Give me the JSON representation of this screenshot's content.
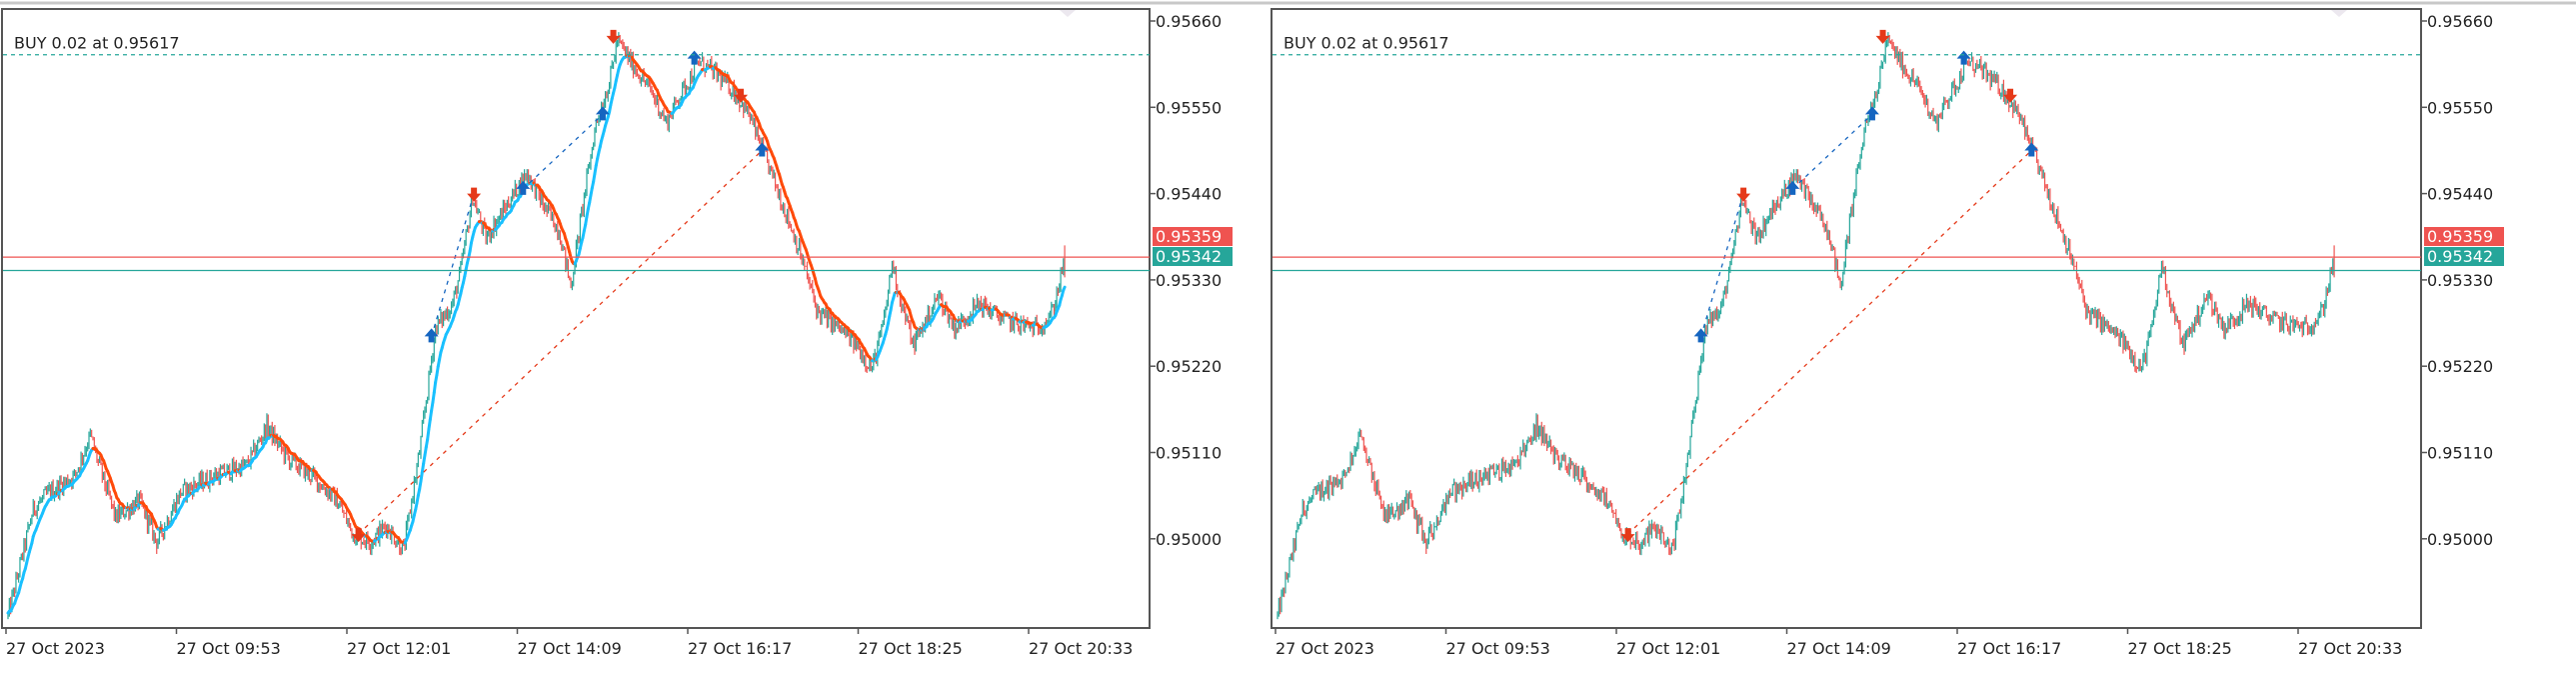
{
  "colors": {
    "up": "#26a69a",
    "down": "#ef5350",
    "ma_up": "#19c0ff",
    "ma_down": "#ff4a0a",
    "bid": "#ef5350",
    "ask": "#26a69a",
    "buy_marker": "#1565c0",
    "sell_marker": "#e53919"
  },
  "symbol_price_axis": [
    "0.95660",
    "0.95550",
    "0.95440",
    "0.95330",
    "0.95220",
    "0.95110",
    "0.95000"
  ],
  "time_axis": [
    "27 Oct 2023",
    "27 Oct 09:53",
    "27 Oct 12:01",
    "27 Oct 14:09",
    "27 Oct 16:17",
    "27 Oct 18:25",
    "27 Oct 20:33"
  ],
  "position_label": "BUY 0.02 at 0.95617",
  "position_price": 0.95617,
  "bid_price": "0.95359",
  "ask_price": "0.95342",
  "charts": [
    {
      "name": "left-chart",
      "moving_average": true
    },
    {
      "name": "right-chart",
      "moving_average": false
    }
  ],
  "price_path": [
    [
      0,
      0.94902
    ],
    [
      6,
      0.94944
    ],
    [
      19,
      0.95038
    ],
    [
      31,
      0.95059
    ],
    [
      50,
      0.9508
    ],
    [
      62,
      0.95132
    ],
    [
      71,
      0.9508
    ],
    [
      81,
      0.95027
    ],
    [
      99,
      0.95048
    ],
    [
      112,
      0.94996
    ],
    [
      130,
      0.95059
    ],
    [
      155,
      0.9508
    ],
    [
      180,
      0.95094
    ],
    [
      195,
      0.95143
    ],
    [
      211,
      0.95101
    ],
    [
      229,
      0.9508
    ],
    [
      248,
      0.95048
    ],
    [
      260,
      0.95006
    ],
    [
      273,
      0.94996
    ],
    [
      285,
      0.95017
    ],
    [
      298,
      0.94985
    ],
    [
      310,
      0.95111
    ],
    [
      322,
      0.95268
    ],
    [
      335,
      0.953
    ],
    [
      341,
      0.95342
    ],
    [
      350,
      0.95436
    ],
    [
      360,
      0.95383
    ],
    [
      372,
      0.95415
    ],
    [
      391,
      0.95467
    ],
    [
      403,
      0.95425
    ],
    [
      415,
      0.95394
    ],
    [
      424,
      0.95321
    ],
    [
      434,
      0.95436
    ],
    [
      443,
      0.9553
    ],
    [
      453,
      0.95582
    ],
    [
      459,
      0.95635
    ],
    [
      471,
      0.95603
    ],
    [
      484,
      0.95572
    ],
    [
      496,
      0.9553
    ],
    [
      505,
      0.95562
    ],
    [
      521,
      0.95608
    ],
    [
      533,
      0.95593
    ],
    [
      546,
      0.95572
    ],
    [
      558,
      0.95541
    ],
    [
      577,
      0.95457
    ],
    [
      595,
      0.95373
    ],
    [
      610,
      0.95289
    ],
    [
      626,
      0.95268
    ],
    [
      639,
      0.95247
    ],
    [
      651,
      0.95216
    ],
    [
      660,
      0.95279
    ],
    [
      666,
      0.95352
    ],
    [
      673,
      0.953
    ],
    [
      682,
      0.95247
    ],
    [
      701,
      0.9531
    ],
    [
      713,
      0.95268
    ],
    [
      732,
      0.953
    ],
    [
      750,
      0.95279
    ],
    [
      775,
      0.95268
    ],
    [
      787,
      0.95289
    ],
    [
      794,
      0.95342
    ],
    [
      796,
      0.95345
    ]
  ],
  "trades": [
    {
      "t": 264,
      "price": 0.95006,
      "type": "sell"
    },
    {
      "t": 319,
      "price": 0.95258,
      "type": "buy"
    },
    {
      "t": 351,
      "price": 0.9544,
      "type": "sell"
    },
    {
      "t": 388,
      "price": 0.95446,
      "type": "buy"
    },
    {
      "t": 448,
      "price": 0.95541,
      "type": "buy"
    },
    {
      "t": 456,
      "price": 0.95641,
      "type": "sell"
    },
    {
      "t": 517,
      "price": 0.95612,
      "type": "buy"
    },
    {
      "t": 552,
      "price": 0.95566,
      "type": "sell"
    },
    {
      "t": 568,
      "price": 0.95495,
      "type": "buy"
    }
  ],
  "trade_links": [
    {
      "from": 1,
      "to": 2,
      "type": "buy"
    },
    {
      "from": 3,
      "to": 4,
      "type": "buy"
    },
    {
      "from": 0,
      "to": 8,
      "type": "sell"
    }
  ]
}
